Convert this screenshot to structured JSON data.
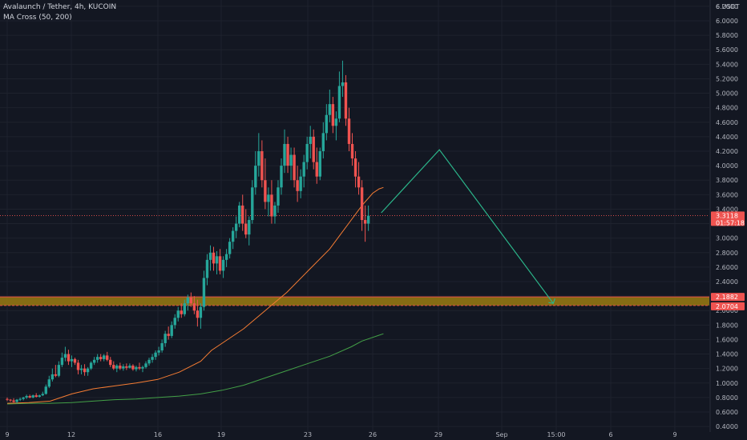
{
  "header": {
    "symbol_line": "Avalaunch / Tether, 4h, KUCOIN",
    "indicator_line": "MA Cross (50, 200)"
  },
  "colors": {
    "background": "#131722",
    "up_candle": "#26a69a",
    "down_candle": "#ef5350",
    "ma50": "#f57c33",
    "ma200": "#43a047",
    "projection": "#2bb58a",
    "zone_fill": "#9a7b12",
    "zone_border": "#e65045",
    "grid": "#1e222d",
    "axis_text": "#b2b5be"
  },
  "chart_data": {
    "type": "candlestick",
    "title": "Avalaunch / Tether, 4h, KUCOIN",
    "y_axis": {
      "unit_label": "6 USDT",
      "ticks": [
        "6.2000",
        "6.0000",
        "5.8000",
        "5.6000",
        "5.4000",
        "5.2000",
        "5.0000",
        "4.8000",
        "4.6000",
        "4.4000",
        "4.2000",
        "4.0000",
        "3.8000",
        "3.6000",
        "3.4000",
        "3.2000",
        "3.0000",
        "2.8000",
        "2.6000",
        "2.4000",
        "2.2000",
        "2.0000",
        "1.8000",
        "1.6000",
        "1.4000",
        "1.2000",
        "1.0000",
        "0.8000",
        "0.6000",
        "0.4000"
      ],
      "range": [
        0.4,
        6.4
      ]
    },
    "x_axis": {
      "ticks": [
        "9",
        "12",
        "16",
        "19",
        "23",
        "26",
        "29",
        "Sep",
        "15:00",
        "6",
        "9"
      ]
    },
    "current_price": {
      "value": 3.3118,
      "price_text": "3.3118",
      "countdown": "01:57:18"
    },
    "zone": {
      "upper": 2.1882,
      "lower": 2.0704,
      "upper_text": "2.1882",
      "lower_text": "2.0704"
    },
    "projection_path": [
      {
        "x_day": 26.4,
        "price": 3.35
      },
      {
        "x_day": 29.1,
        "price": 4.22
      },
      {
        "x_day": 34.4,
        "price": 2.1
      }
    ],
    "ma50": [
      [
        9.0,
        0.72
      ],
      [
        10,
        0.73
      ],
      [
        11,
        0.75
      ],
      [
        11.5,
        0.8
      ],
      [
        12,
        0.85
      ],
      [
        13,
        0.92
      ],
      [
        14,
        0.96
      ],
      [
        15,
        1.0
      ],
      [
        16,
        1.05
      ],
      [
        17,
        1.15
      ],
      [
        18,
        1.3
      ],
      [
        18.5,
        1.45
      ],
      [
        19,
        1.55
      ],
      [
        20,
        1.75
      ],
      [
        21,
        2.0
      ],
      [
        22,
        2.25
      ],
      [
        23,
        2.55
      ],
      [
        24,
        2.85
      ],
      [
        24.5,
        3.05
      ],
      [
        25,
        3.25
      ],
      [
        25.5,
        3.45
      ],
      [
        26,
        3.62
      ],
      [
        26.3,
        3.68
      ],
      [
        26.5,
        3.7
      ]
    ],
    "ma200": [
      [
        9.0,
        0.71
      ],
      [
        10,
        0.72
      ],
      [
        11,
        0.72
      ],
      [
        12,
        0.73
      ],
      [
        13,
        0.75
      ],
      [
        14,
        0.77
      ],
      [
        15,
        0.78
      ],
      [
        16,
        0.8
      ],
      [
        17,
        0.82
      ],
      [
        18,
        0.85
      ],
      [
        19,
        0.9
      ],
      [
        20,
        0.97
      ],
      [
        21,
        1.07
      ],
      [
        22,
        1.17
      ],
      [
        23,
        1.27
      ],
      [
        24,
        1.37
      ],
      [
        25,
        1.5
      ],
      [
        25.5,
        1.58
      ],
      [
        26.3,
        1.66
      ],
      [
        26.5,
        1.68
      ]
    ],
    "candles": [
      [
        9.0,
        0.78,
        0.8,
        0.75,
        0.77
      ],
      [
        9.15,
        0.77,
        0.78,
        0.74,
        0.76
      ],
      [
        9.3,
        0.76,
        0.79,
        0.73,
        0.74
      ],
      [
        9.45,
        0.74,
        0.78,
        0.72,
        0.77
      ],
      [
        9.6,
        0.77,
        0.8,
        0.75,
        0.78
      ],
      [
        9.75,
        0.78,
        0.81,
        0.76,
        0.8
      ],
      [
        9.9,
        0.8,
        0.84,
        0.78,
        0.82
      ],
      [
        10.05,
        0.82,
        0.84,
        0.79,
        0.8
      ],
      [
        10.2,
        0.8,
        0.84,
        0.79,
        0.83
      ],
      [
        10.35,
        0.83,
        0.86,
        0.8,
        0.81
      ],
      [
        10.5,
        0.81,
        0.84,
        0.8,
        0.83
      ],
      [
        10.65,
        0.83,
        0.88,
        0.82,
        0.85
      ],
      [
        10.8,
        0.85,
        0.98,
        0.84,
        0.95
      ],
      [
        10.95,
        0.95,
        1.1,
        0.93,
        1.05
      ],
      [
        11.1,
        1.05,
        1.2,
        1.02,
        1.12
      ],
      [
        11.25,
        1.12,
        1.25,
        1.08,
        1.1
      ],
      [
        11.4,
        1.1,
        1.3,
        1.08,
        1.25
      ],
      [
        11.55,
        1.25,
        1.42,
        1.22,
        1.35
      ],
      [
        11.7,
        1.35,
        1.5,
        1.3,
        1.4
      ],
      [
        11.85,
        1.4,
        1.46,
        1.25,
        1.3
      ],
      [
        12.0,
        1.3,
        1.38,
        1.22,
        1.33
      ],
      [
        12.15,
        1.33,
        1.35,
        1.25,
        1.28
      ],
      [
        12.3,
        1.28,
        1.32,
        1.12,
        1.18
      ],
      [
        12.45,
        1.18,
        1.25,
        1.12,
        1.2
      ],
      [
        12.6,
        1.2,
        1.26,
        1.1,
        1.15
      ],
      [
        12.75,
        1.15,
        1.22,
        1.1,
        1.2
      ],
      [
        12.9,
        1.2,
        1.3,
        1.18,
        1.28
      ],
      [
        13.05,
        1.28,
        1.36,
        1.25,
        1.32
      ],
      [
        13.2,
        1.32,
        1.4,
        1.28,
        1.36
      ],
      [
        13.35,
        1.36,
        1.4,
        1.3,
        1.33
      ],
      [
        13.5,
        1.33,
        1.4,
        1.3,
        1.38
      ],
      [
        13.65,
        1.38,
        1.43,
        1.3,
        1.32
      ],
      [
        13.8,
        1.32,
        1.36,
        1.22,
        1.25
      ],
      [
        13.95,
        1.25,
        1.3,
        1.18,
        1.2
      ],
      [
        14.1,
        1.2,
        1.26,
        1.15,
        1.24
      ],
      [
        14.25,
        1.24,
        1.28,
        1.18,
        1.2
      ],
      [
        14.4,
        1.2,
        1.26,
        1.17,
        1.23
      ],
      [
        14.55,
        1.23,
        1.27,
        1.18,
        1.21
      ],
      [
        14.7,
        1.21,
        1.27,
        1.2,
        1.24
      ],
      [
        14.85,
        1.24,
        1.26,
        1.17,
        1.19
      ],
      [
        15.0,
        1.19,
        1.24,
        1.16,
        1.22
      ],
      [
        15.15,
        1.22,
        1.28,
        1.18,
        1.2
      ],
      [
        15.3,
        1.2,
        1.24,
        1.15,
        1.22
      ],
      [
        15.45,
        1.22,
        1.3,
        1.2,
        1.27
      ],
      [
        15.6,
        1.27,
        1.35,
        1.24,
        1.32
      ],
      [
        15.75,
        1.32,
        1.4,
        1.28,
        1.36
      ],
      [
        15.9,
        1.36,
        1.45,
        1.32,
        1.42
      ],
      [
        16.05,
        1.42,
        1.5,
        1.38,
        1.45
      ],
      [
        16.2,
        1.45,
        1.6,
        1.42,
        1.55
      ],
      [
        16.35,
        1.55,
        1.72,
        1.5,
        1.68
      ],
      [
        16.5,
        1.68,
        1.78,
        1.6,
        1.65
      ],
      [
        16.65,
        1.65,
        1.85,
        1.62,
        1.8
      ],
      [
        16.8,
        1.8,
        1.95,
        1.75,
        1.9
      ],
      [
        16.95,
        1.9,
        2.05,
        1.85,
        2.0
      ],
      [
        17.1,
        2.0,
        2.1,
        1.9,
        1.95
      ],
      [
        17.25,
        1.95,
        2.15,
        1.92,
        2.1
      ],
      [
        17.4,
        2.1,
        2.22,
        2.0,
        2.18
      ],
      [
        17.55,
        2.18,
        2.25,
        2.05,
        2.1
      ],
      [
        17.7,
        2.1,
        2.2,
        1.95,
        2.0
      ],
      [
        17.85,
        2.0,
        2.15,
        1.78,
        1.9
      ],
      [
        18.0,
        1.9,
        2.1,
        1.75,
        2.05
      ],
      [
        18.15,
        2.05,
        2.55,
        2.0,
        2.45
      ],
      [
        18.3,
        2.45,
        2.78,
        2.35,
        2.7
      ],
      [
        18.45,
        2.7,
        2.9,
        2.55,
        2.8
      ],
      [
        18.6,
        2.8,
        2.88,
        2.55,
        2.65
      ],
      [
        18.75,
        2.65,
        2.82,
        2.5,
        2.75
      ],
      [
        18.9,
        2.75,
        2.85,
        2.5,
        2.55
      ],
      [
        19.05,
        2.55,
        2.75,
        2.45,
        2.7
      ],
      [
        19.2,
        2.7,
        2.85,
        2.6,
        2.78
      ],
      [
        19.35,
        2.78,
        3.0,
        2.72,
        2.95
      ],
      [
        19.5,
        2.95,
        3.15,
        2.85,
        3.1
      ],
      [
        19.65,
        3.1,
        3.3,
        3.0,
        3.2
      ],
      [
        19.8,
        3.2,
        3.5,
        3.15,
        3.45
      ],
      [
        19.95,
        3.45,
        3.6,
        3.1,
        3.2
      ],
      [
        20.1,
        3.2,
        3.4,
        3.0,
        3.05
      ],
      [
        20.25,
        3.05,
        3.3,
        2.9,
        3.25
      ],
      [
        20.4,
        3.25,
        3.8,
        3.2,
        3.7
      ],
      [
        20.55,
        3.7,
        4.2,
        3.6,
        4.0
      ],
      [
        20.7,
        4.0,
        4.45,
        3.85,
        4.2
      ],
      [
        20.85,
        4.2,
        4.35,
        3.7,
        3.8
      ],
      [
        21.0,
        3.8,
        4.1,
        3.4,
        3.5
      ],
      [
        21.15,
        3.5,
        3.7,
        3.3,
        3.6
      ],
      [
        21.3,
        3.6,
        3.8,
        3.2,
        3.3
      ],
      [
        21.45,
        3.3,
        3.5,
        3.2,
        3.45
      ],
      [
        21.6,
        3.45,
        3.8,
        3.35,
        3.7
      ],
      [
        21.75,
        3.7,
        4.1,
        3.6,
        4.0
      ],
      [
        21.9,
        4.0,
        4.5,
        3.9,
        4.3
      ],
      [
        22.05,
        4.3,
        4.4,
        3.9,
        4.0
      ],
      [
        22.2,
        4.0,
        4.25,
        3.8,
        4.15
      ],
      [
        22.35,
        4.15,
        4.25,
        3.7,
        3.8
      ],
      [
        22.5,
        3.8,
        4.0,
        3.5,
        3.65
      ],
      [
        22.65,
        3.65,
        3.95,
        3.55,
        3.85
      ],
      [
        22.8,
        3.85,
        4.15,
        3.7,
        4.05
      ],
      [
        22.95,
        4.05,
        4.4,
        3.95,
        4.3
      ],
      [
        23.1,
        4.3,
        4.55,
        4.1,
        4.4
      ],
      [
        23.25,
        4.4,
        4.5,
        3.95,
        4.05
      ],
      [
        23.4,
        4.05,
        4.25,
        3.75,
        3.85
      ],
      [
        23.55,
        3.85,
        4.25,
        3.8,
        4.2
      ],
      [
        23.7,
        4.2,
        4.6,
        4.1,
        4.45
      ],
      [
        23.85,
        4.45,
        4.85,
        4.35,
        4.7
      ],
      [
        24.0,
        4.7,
        5.05,
        4.6,
        4.85
      ],
      [
        24.15,
        4.85,
        4.95,
        4.45,
        4.55
      ],
      [
        24.3,
        4.55,
        4.75,
        4.35,
        4.65
      ],
      [
        24.45,
        4.65,
        5.3,
        4.6,
        5.1
      ],
      [
        24.6,
        5.1,
        5.45,
        4.95,
        5.15
      ],
      [
        24.75,
        5.15,
        5.25,
        4.55,
        4.65
      ],
      [
        24.9,
        4.65,
        4.8,
        4.2,
        4.3
      ],
      [
        25.05,
        4.3,
        4.45,
        4.0,
        4.1
      ],
      [
        25.2,
        4.1,
        4.2,
        3.7,
        3.85
      ],
      [
        25.35,
        3.85,
        4.05,
        3.6,
        3.7
      ],
      [
        25.5,
        3.7,
        3.8,
        3.1,
        3.25
      ],
      [
        25.65,
        3.25,
        3.45,
        2.95,
        3.2
      ],
      [
        25.8,
        3.2,
        3.45,
        3.1,
        3.31
      ]
    ]
  }
}
